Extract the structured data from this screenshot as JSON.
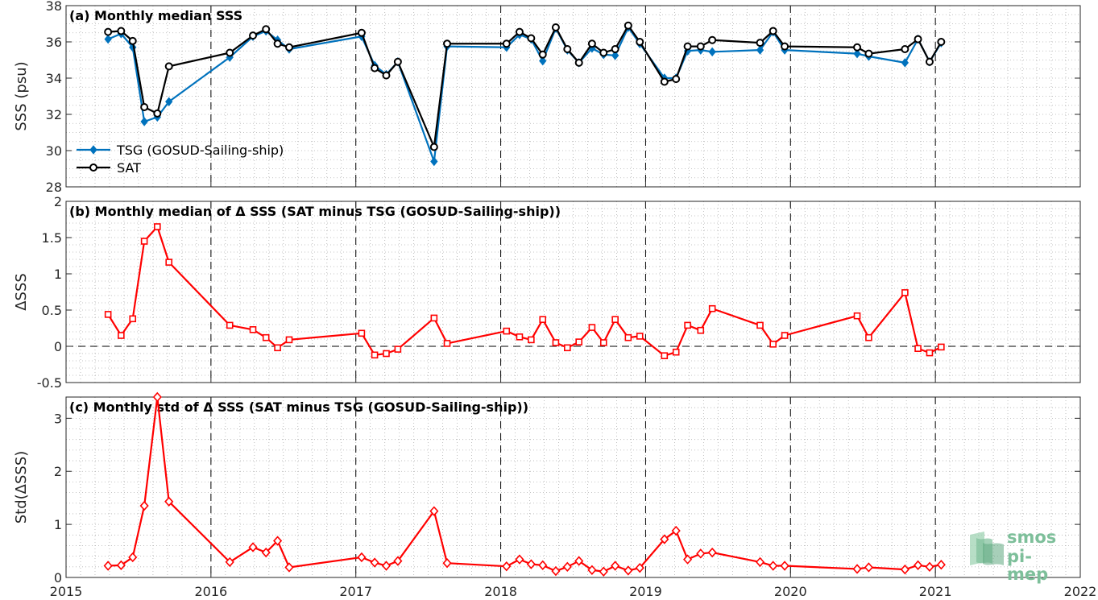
{
  "colors": {
    "tsg": "#0072bd",
    "sat": "#000000",
    "delta": "#ff0000",
    "grid": "#b0b0b0",
    "logo": "#7dbf9a"
  },
  "logo": {
    "line1": "smos",
    "line2": "pi-mep"
  },
  "chart_data": [
    {
      "type": "line",
      "title": "(a) Monthly median SSS",
      "xlabel": "",
      "ylabel": "SSS (psu)",
      "xlim": [
        2015,
        2022
      ],
      "ylim": [
        28,
        38
      ],
      "xticks": [
        2015,
        2016,
        2017,
        2018,
        2019,
        2020,
        2021,
        2022
      ],
      "yticks": [
        28,
        30,
        32,
        34,
        36,
        38
      ],
      "legend_placement": "lower-left",
      "grid": true,
      "x": [
        2015.29,
        2015.38,
        2015.46,
        2015.54,
        2015.63,
        2015.71,
        2016.13,
        2016.29,
        2016.38,
        2016.46,
        2016.54,
        2017.04,
        2017.13,
        2017.21,
        2017.29,
        2017.54,
        2017.63,
        2018.04,
        2018.13,
        2018.21,
        2018.29,
        2018.38,
        2018.46,
        2018.54,
        2018.63,
        2018.71,
        2018.79,
        2018.88,
        2018.96,
        2019.13,
        2019.21,
        2019.29,
        2019.38,
        2019.46,
        2019.79,
        2019.88,
        2019.96,
        2020.46,
        2020.54,
        2020.79,
        2020.88,
        2020.96,
        2021.04
      ],
      "series": [
        {
          "name": "TSG (GOSUD-Sailing-ship)",
          "marker": "diamond-filled",
          "values": [
            36.15,
            36.45,
            35.7,
            31.6,
            31.85,
            32.7,
            35.15,
            36.3,
            36.6,
            36.1,
            35.6,
            36.3,
            34.7,
            34.2,
            34.9,
            29.4,
            35.75,
            35.7,
            36.4,
            36.15,
            34.95,
            36.75,
            35.55,
            34.85,
            35.65,
            35.3,
            35.25,
            36.8,
            35.9,
            34.0,
            34.0,
            35.5,
            35.55,
            35.45,
            35.55,
            36.55,
            35.55,
            35.35,
            35.2,
            34.85,
            36.15,
            34.9,
            35.95
          ]
        },
        {
          "name": "SAT",
          "marker": "circle-open",
          "values": [
            36.55,
            36.6,
            36.05,
            32.4,
            32.05,
            34.65,
            35.4,
            36.35,
            36.7,
            35.9,
            35.7,
            36.5,
            34.55,
            34.15,
            34.9,
            30.2,
            35.9,
            35.9,
            36.55,
            36.2,
            35.3,
            36.8,
            35.6,
            34.85,
            35.9,
            35.4,
            35.6,
            36.9,
            36.0,
            33.8,
            33.95,
            35.75,
            35.75,
            36.1,
            35.95,
            36.6,
            35.75,
            35.7,
            35.35,
            35.6,
            36.15,
            34.9,
            36.0
          ]
        }
      ]
    },
    {
      "type": "line",
      "title": "(b) Monthly median of Δ SSS (SAT minus TSG (GOSUD-Sailing-ship))",
      "xlabel": "",
      "ylabel": "ΔSSS",
      "xlim": [
        2015,
        2022
      ],
      "ylim": [
        -0.5,
        2
      ],
      "yticks": [
        -0.5,
        0,
        0.5,
        1,
        1.5,
        2
      ],
      "zero_line": true,
      "grid": true,
      "x": [
        2015.29,
        2015.38,
        2015.46,
        2015.54,
        2015.63,
        2015.71,
        2016.13,
        2016.29,
        2016.38,
        2016.46,
        2016.54,
        2017.04,
        2017.13,
        2017.21,
        2017.29,
        2017.54,
        2017.63,
        2018.04,
        2018.13,
        2018.21,
        2018.29,
        2018.38,
        2018.46,
        2018.54,
        2018.63,
        2018.71,
        2018.79,
        2018.88,
        2018.96,
        2019.13,
        2019.21,
        2019.29,
        2019.38,
        2019.46,
        2019.79,
        2019.88,
        2019.96,
        2020.46,
        2020.54,
        2020.79,
        2020.88,
        2020.96,
        2021.04
      ],
      "series": [
        {
          "name": "",
          "marker": "square-open",
          "values": [
            0.44,
            0.15,
            0.38,
            1.45,
            1.65,
            1.16,
            0.29,
            0.23,
            0.12,
            -0.02,
            0.09,
            0.18,
            -0.12,
            -0.1,
            -0.04,
            0.39,
            0.04,
            0.21,
            0.13,
            0.09,
            0.37,
            0.05,
            -0.02,
            0.06,
            0.26,
            0.05,
            0.37,
            0.12,
            0.14,
            -0.13,
            -0.08,
            0.29,
            0.22,
            0.52,
            0.29,
            0.03,
            0.15,
            0.42,
            0.12,
            0.74,
            -0.03,
            -0.09,
            -0.01
          ]
        }
      ]
    },
    {
      "type": "line",
      "title": "(c) Monthly std of Δ SSS (SAT minus TSG (GOSUD-Sailing-ship))",
      "xlabel": "",
      "ylabel": "Std(ΔSSS)",
      "xlim": [
        2015,
        2022
      ],
      "ylim": [
        0,
        3.4
      ],
      "yticks": [
        0,
        1,
        2,
        3
      ],
      "xticks": [
        2015,
        2016,
        2017,
        2018,
        2019,
        2020,
        2021,
        2022
      ],
      "grid": true,
      "x": [
        2015.29,
        2015.38,
        2015.46,
        2015.54,
        2015.63,
        2015.71,
        2016.13,
        2016.29,
        2016.38,
        2016.46,
        2016.54,
        2017.04,
        2017.13,
        2017.21,
        2017.29,
        2017.54,
        2017.63,
        2018.04,
        2018.13,
        2018.21,
        2018.29,
        2018.38,
        2018.46,
        2018.54,
        2018.63,
        2018.71,
        2018.79,
        2018.88,
        2018.96,
        2019.13,
        2019.21,
        2019.29,
        2019.38,
        2019.46,
        2019.79,
        2019.88,
        2019.96,
        2020.46,
        2020.54,
        2020.79,
        2020.88,
        2020.96,
        2021.04
      ],
      "series": [
        {
          "name": "",
          "marker": "diamond-open",
          "values": [
            0.22,
            0.23,
            0.38,
            1.35,
            3.4,
            1.43,
            0.29,
            0.57,
            0.47,
            0.69,
            0.19,
            0.38,
            0.28,
            0.22,
            0.31,
            1.25,
            0.27,
            0.21,
            0.34,
            0.25,
            0.23,
            0.12,
            0.2,
            0.31,
            0.14,
            0.11,
            0.22,
            0.13,
            0.18,
            0.72,
            0.88,
            0.34,
            0.45,
            0.47,
            0.29,
            0.22,
            0.22,
            0.16,
            0.19,
            0.15,
            0.23,
            0.2,
            0.24
          ]
        }
      ]
    }
  ]
}
